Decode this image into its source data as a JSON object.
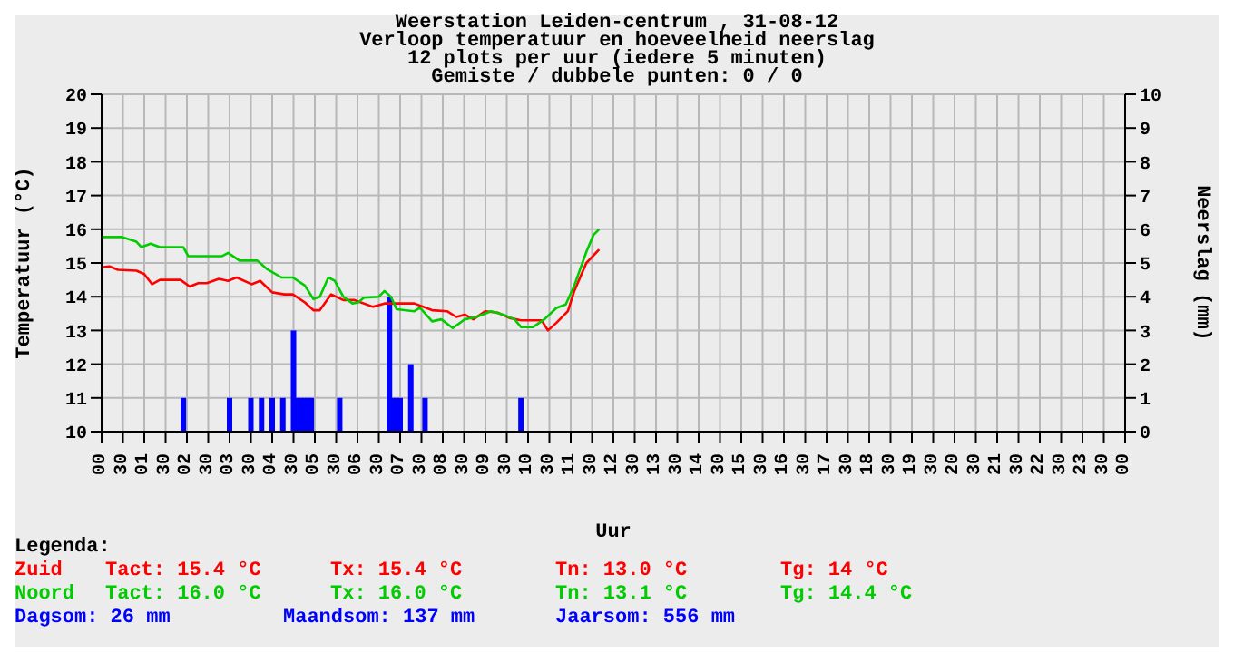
{
  "chart_data": {
    "type": "line",
    "title": "Weerstation Leiden-centrum , 31-08-12",
    "subtitle": "Verloop temperatuur en hoeveelheid neerslag",
    "xlabel": "Uur",
    "ylabel": "Temperatuur (°C)",
    "y2label": "Neerslag (mm)",
    "xlim": [
      "--08-31T00:00",
      "--09-01T00:00"
    ],
    "xticks": [
      {
        "value": "--08-31T00:00",
        "label": "00"
      },
      {
        "value": "--08-31T00:30",
        "label": "30"
      },
      {
        "value": "--08-31T01:00",
        "label": "01"
      },
      {
        "value": "--08-31T01:30",
        "label": "30"
      },
      {
        "value": "--08-31T02:00",
        "label": "02"
      },
      {
        "value": "--08-31T02:30",
        "label": "30"
      },
      {
        "value": "--08-31T03:00",
        "label": "03"
      },
      {
        "value": "--08-31T03:30",
        "label": "30"
      },
      {
        "value": "--08-31T04:00",
        "label": "04"
      },
      {
        "value": "--08-31T04:30",
        "label": "30"
      },
      {
        "value": "--08-31T05:00",
        "label": "05"
      },
      {
        "value": "--08-31T05:30",
        "label": "30"
      },
      {
        "value": "--08-31T06:00",
        "label": "06"
      },
      {
        "value": "--08-31T06:30",
        "label": "30"
      },
      {
        "value": "--08-31T07:00",
        "label": "07"
      },
      {
        "value": "--08-31T07:30",
        "label": "30"
      },
      {
        "value": "--08-31T08:00",
        "label": "08"
      },
      {
        "value": "--08-31T08:30",
        "label": "30"
      },
      {
        "value": "--08-31T09:00",
        "label": "09"
      },
      {
        "value": "--08-31T09:30",
        "label": "30"
      },
      {
        "value": "--08-31T10:00",
        "label": "10"
      },
      {
        "value": "--08-31T10:30",
        "label": "30"
      },
      {
        "value": "--08-31T11:00",
        "label": "11"
      },
      {
        "value": "--08-31T11:30",
        "label": "30"
      },
      {
        "value": "--08-31T12:00",
        "label": "12"
      },
      {
        "value": "--08-31T12:30",
        "label": "30"
      },
      {
        "value": "--08-31T13:00",
        "label": "13"
      },
      {
        "value": "--08-31T13:30",
        "label": "30"
      },
      {
        "value": "--08-31T14:00",
        "label": "14"
      },
      {
        "value": "--08-31T14:30",
        "label": "30"
      },
      {
        "value": "--08-31T15:00",
        "label": "15"
      },
      {
        "value": "--08-31T15:30",
        "label": "30"
      },
      {
        "value": "--08-31T16:00",
        "label": "16"
      },
      {
        "value": "--08-31T16:30",
        "label": "30"
      },
      {
        "value": "--08-31T17:00",
        "label": "17"
      },
      {
        "value": "--08-31T17:30",
        "label": "30"
      },
      {
        "value": "--08-31T18:00",
        "label": "18"
      },
      {
        "value": "--08-31T18:30",
        "label": "30"
      },
      {
        "value": "--08-31T19:00",
        "label": "19"
      },
      {
        "value": "--08-31T19:30",
        "label": "30"
      },
      {
        "value": "--08-31T20:00",
        "label": "20"
      },
      {
        "value": "--08-31T20:30",
        "label": "30"
      },
      {
        "value": "--08-31T21:00",
        "label": "21"
      },
      {
        "value": "--08-31T21:30",
        "label": "30"
      },
      {
        "value": "--08-31T22:00",
        "label": "22"
      },
      {
        "value": "--08-31T22:30",
        "label": "30"
      },
      {
        "value": "--08-31T23:00",
        "label": "23"
      },
      {
        "value": "--08-31T23:30",
        "label": "30"
      },
      {
        "value": "--09-01T00:00",
        "label": "00"
      }
    ],
    "ylim": [
      10,
      20
    ],
    "yticks": [
      10,
      11,
      12,
      13,
      14,
      15,
      16,
      17,
      18,
      19,
      20
    ],
    "y2lim": [
      0,
      10
    ],
    "y2ticks": [
      0,
      1,
      2,
      3,
      4,
      5,
      6,
      7,
      8,
      9,
      10
    ],
    "grid": true,
    "marker": "none",
    "line_style": "solid",
    "legend": "bottom",
    "series": [
      {
        "name": "Zuid",
        "color": "#ff0000",
        "x": [
          "--08-31T00:00",
          "--08-31T00:11",
          "--08-31T00:23",
          "--08-31T00:49",
          "--08-31T01:00",
          "--08-31T01:11",
          "--08-31T01:22",
          "--08-31T01:30",
          "--08-31T01:51",
          "--08-31T02:04",
          "--08-31T02:16",
          "--08-31T02:28",
          "--08-31T02:45",
          "--08-31T02:58",
          "--08-31T03:10",
          "--08-31T03:31",
          "--08-31T03:43",
          "--08-31T04:00",
          "--08-31T04:17",
          "--08-31T04:29",
          "--08-31T04:46",
          "--08-31T04:58",
          "--08-31T05:07",
          "--08-31T05:23",
          "--08-31T05:40",
          "--08-31T05:56",
          "--08-31T06:22",
          "--08-31T06:38",
          "--08-31T07:20",
          "--08-31T07:45",
          "--08-31T08:06",
          "--08-31T08:19",
          "--08-31T08:31",
          "--08-31T08:43",
          "--08-31T09:00",
          "--08-31T09:17",
          "--08-31T09:34",
          "--08-31T09:50",
          "--08-31T10:19",
          "--08-31T10:28",
          "--08-31T10:40",
          "--08-31T10:56",
          "--08-31T11:05",
          "--08-31T11:22",
          "--08-31T11:40"
        ],
        "values": [
          14.87,
          14.9,
          14.8,
          14.77,
          14.67,
          14.37,
          14.5,
          14.5,
          14.5,
          14.3,
          14.4,
          14.4,
          14.53,
          14.47,
          14.57,
          14.37,
          14.47,
          14.13,
          14.07,
          14.07,
          13.83,
          13.6,
          13.6,
          14.07,
          13.9,
          13.9,
          13.7,
          13.8,
          13.8,
          13.6,
          13.57,
          13.4,
          13.47,
          13.33,
          13.57,
          13.53,
          13.37,
          13.3,
          13.3,
          13.0,
          13.23,
          13.57,
          14.17,
          15.0,
          15.4
        ]
      },
      {
        "name": "Noord",
        "color": "#00cc00",
        "x": [
          "--08-31T00:00",
          "--08-31T00:28",
          "--08-31T00:49",
          "--08-31T00:56",
          "--08-31T01:09",
          "--08-31T01:22",
          "--08-31T01:55",
          "--08-31T02:02",
          "--08-31T02:49",
          "--08-31T02:58",
          "--08-31T03:14",
          "--08-31T03:39",
          "--08-31T03:52",
          "--08-31T04:13",
          "--08-31T04:29",
          "--08-31T04:46",
          "--08-31T04:58",
          "--08-31T05:07",
          "--08-31T05:19",
          "--08-31T05:28",
          "--08-31T05:40",
          "--08-31T05:53",
          "--08-31T06:01",
          "--08-31T06:09",
          "--08-31T06:30",
          "--08-31T06:38",
          "--08-31T06:47",
          "--08-31T06:55",
          "--08-31T07:20",
          "--08-31T07:28",
          "--08-31T07:45",
          "--08-31T07:58",
          "--08-31T08:14",
          "--08-31T08:31",
          "--08-31T08:47",
          "--08-31T09:08",
          "--08-31T09:25",
          "--08-31T09:41",
          "--08-31T09:50",
          "--08-31T10:07",
          "--08-31T10:23",
          "--08-31T10:40",
          "--08-31T10:53",
          "--08-31T11:05",
          "--08-31T11:22",
          "--08-31T11:32",
          "--08-31T11:40"
        ],
        "values": [
          15.77,
          15.77,
          15.63,
          15.47,
          15.57,
          15.47,
          15.47,
          15.2,
          15.2,
          15.3,
          15.07,
          15.07,
          14.83,
          14.57,
          14.57,
          14.33,
          13.93,
          14.0,
          14.57,
          14.47,
          14.0,
          13.8,
          13.83,
          13.97,
          14.0,
          14.17,
          14.0,
          13.63,
          13.57,
          13.67,
          13.27,
          13.33,
          13.07,
          13.33,
          13.4,
          13.57,
          13.47,
          13.33,
          13.1,
          13.1,
          13.33,
          13.67,
          13.77,
          14.33,
          15.33,
          15.83,
          16.0
        ]
      },
      {
        "type": "bar",
        "axis": "y2",
        "color": "#0000ff",
        "x": [
          "--08-31T01:55",
          "--08-31T03:00",
          "--08-31T03:30",
          "--08-31T03:45",
          "--08-31T04:00",
          "--08-31T04:15",
          "--08-31T04:30",
          "--08-31T04:35",
          "--08-31T04:40",
          "--08-31T04:45",
          "--08-31T04:50",
          "--08-31T04:55",
          "--08-31T05:35",
          "--08-31T06:45",
          "--08-31T06:50",
          "--08-31T06:55",
          "--08-31T07:00",
          "--08-31T07:15",
          "--08-31T07:35",
          "--08-31T09:50"
        ],
        "values": [
          1,
          1,
          1,
          1,
          1,
          1,
          3,
          1,
          1,
          1,
          1,
          1,
          1,
          4,
          1,
          1,
          1,
          2,
          1,
          1
        ]
      }
    ],
    "annotations": [
      "12 plots per uur (iedere 5 minuten)",
      "Gemiste / dubbele punten: 0 / 0",
      "Legenda:",
      "Tact: 15.4 °C",
      "Tx: 15.4 °C",
      "Tn: 13.0 °C",
      "Tg: 14 °C",
      "Tact: 16.0 °C",
      "Tx: 16.0 °C",
      "Tn: 13.1 °C",
      "Tg: 14.4 °C",
      "Dagsom: 26 mm",
      "Maandsom: 137 mm",
      "Jaarsom: 556 mm"
    ]
  }
}
